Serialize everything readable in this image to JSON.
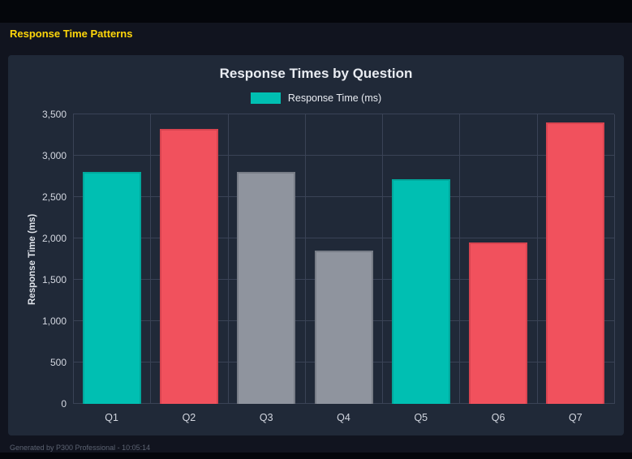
{
  "header": {
    "title": "Response Time Patterns"
  },
  "footer": {
    "text": "Generated by P300 Professional - 10:05:14"
  },
  "chart_data": {
    "type": "bar",
    "title": "Response Times by Question",
    "legend": "Response Time (ms)",
    "legend_position": "top",
    "xlabel": "",
    "ylabel": "Response Time (ms)",
    "categories": [
      "Q1",
      "Q2",
      "Q3",
      "Q4",
      "Q5",
      "Q6",
      "Q7"
    ],
    "values": [
      2800,
      3320,
      2800,
      1850,
      2720,
      1950,
      3400
    ],
    "bar_colors": [
      "#00bfb2",
      "#f1515d",
      "#8f949e",
      "#8f949e",
      "#00bfb2",
      "#f1515d",
      "#f1515d"
    ],
    "bar_border_colors": [
      "#00a89c",
      "#d84450",
      "#777c86",
      "#777c86",
      "#00a89c",
      "#d84450",
      "#d84450"
    ],
    "ylim": [
      0,
      3500
    ],
    "yticks": [
      0,
      500,
      1000,
      1500,
      2000,
      2500,
      3000,
      3500
    ],
    "grid": true,
    "accent_colors": {
      "teal": "#00bfb2",
      "red": "#f1515d",
      "gray": "#8f949e"
    }
  }
}
